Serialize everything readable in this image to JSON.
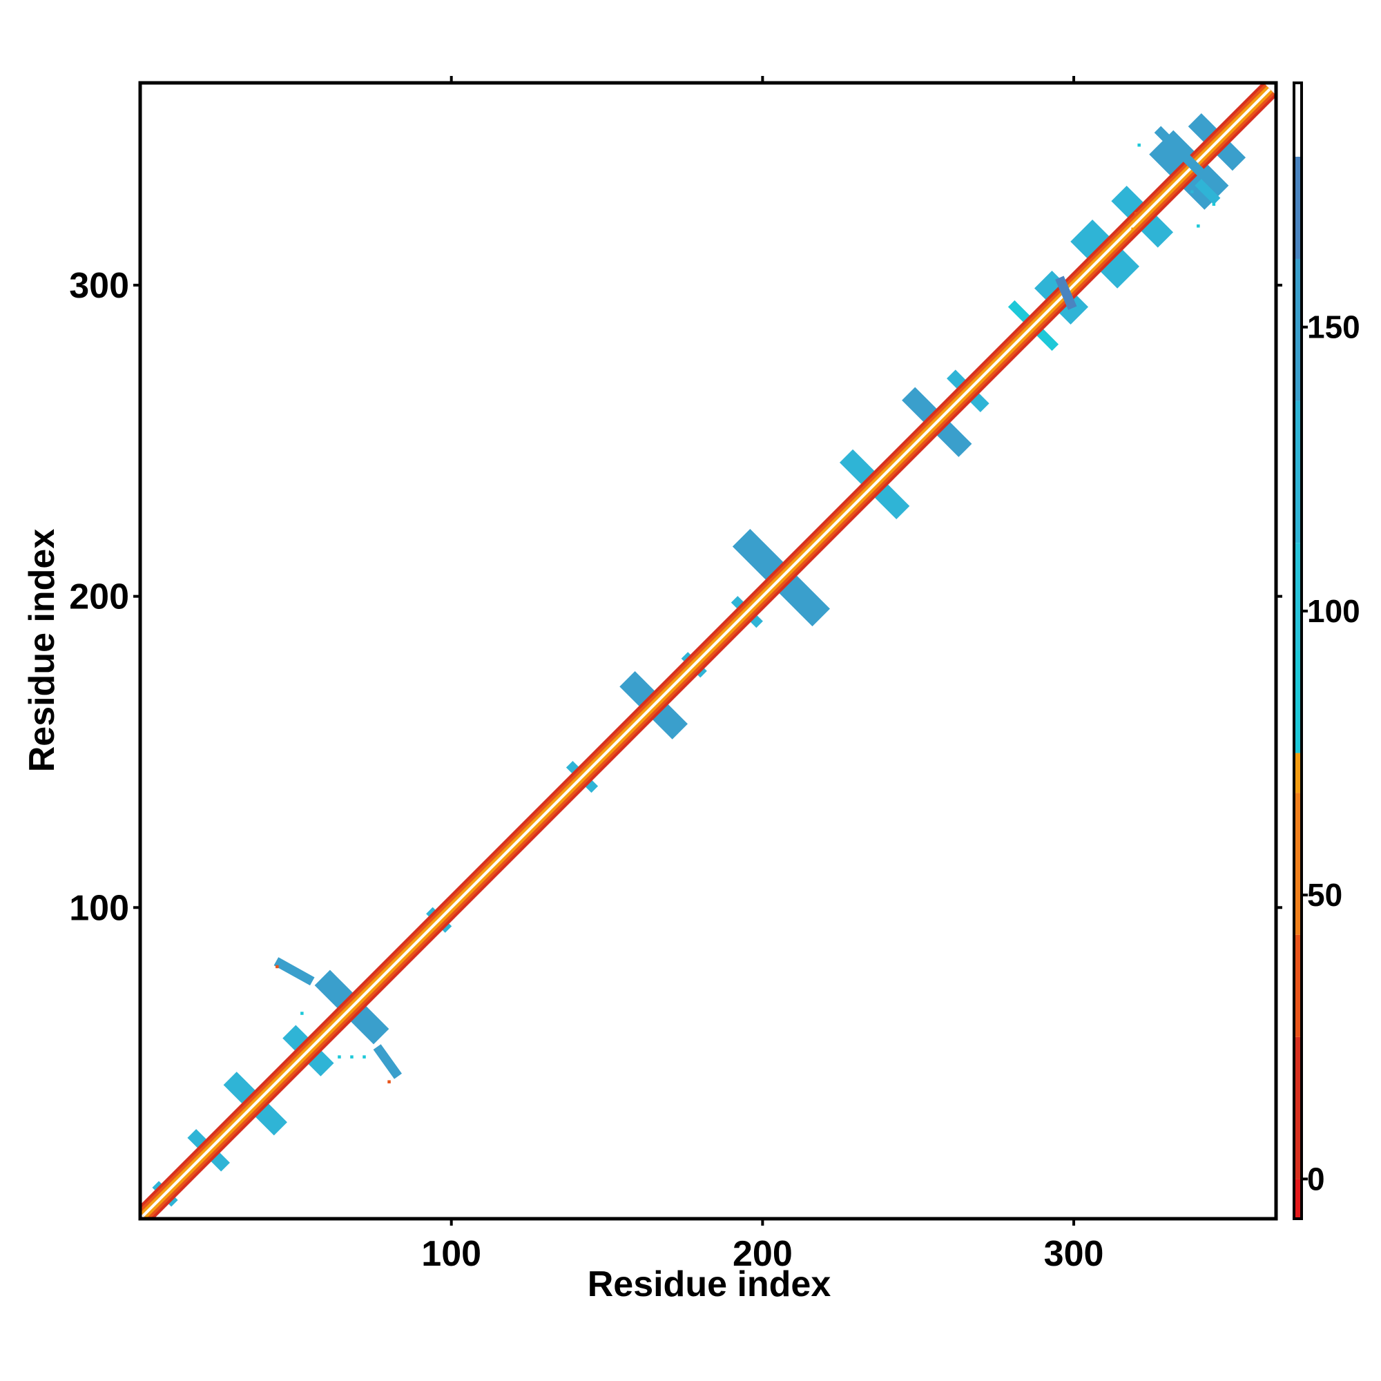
{
  "chart_data": {
    "type": "heatmap",
    "title": "",
    "xlabel": "Residue index",
    "ylabel": "Residue index",
    "xlim": [
      0,
      365
    ],
    "ylim": [
      0,
      365
    ],
    "x_ticks": [
      100,
      200,
      300
    ],
    "y_ticks": [
      100,
      200,
      300
    ],
    "x_tick_labels": [
      "100",
      "200",
      "300"
    ],
    "y_tick_labels": [
      "100",
      "200",
      "300"
    ],
    "grid": false,
    "legend": "none",
    "colorbar": {
      "position": "right",
      "range": [
        -7,
        193
      ],
      "ticks": [
        0,
        50,
        100,
        150
      ],
      "tick_labels": [
        "0",
        "50",
        "100",
        "150"
      ],
      "bands": [
        {
          "from": -7,
          "to": 0,
          "color": "#e41a1c"
        },
        {
          "from": 0,
          "to": 25,
          "color": "#d7301f"
        },
        {
          "from": 25,
          "to": 43,
          "color": "#e8541a"
        },
        {
          "from": 43,
          "to": 68,
          "color": "#f07f1b"
        },
        {
          "from": 68,
          "to": 75,
          "color": "#f39c12"
        },
        {
          "from": 75,
          "to": 93,
          "color": "#1ec8d8"
        },
        {
          "from": 93,
          "to": 112,
          "color": "#27c3da"
        },
        {
          "from": 112,
          "to": 137,
          "color": "#2fb4d6"
        },
        {
          "from": 137,
          "to": 162,
          "color": "#3a9fcc"
        },
        {
          "from": 162,
          "to": 180,
          "color": "#4a84c0"
        },
        {
          "from": 180,
          "to": 193,
          "color": "#ffffff"
        }
      ]
    },
    "diagonal": {
      "from": 1,
      "to": 363
    },
    "diagonal_bands": [
      {
        "offset": 0,
        "color": "#ffffff"
      },
      {
        "offset": 1,
        "color": "#f39c12"
      },
      {
        "offset": 2,
        "color": "#e8541a"
      },
      {
        "offset": 3,
        "color": "#d7301f"
      }
    ],
    "blocks": [
      {
        "center": 8,
        "half": 2,
        "width": 3,
        "color": "#2fb4d6"
      },
      {
        "center": 22,
        "half": 4,
        "width": 4,
        "color": "#2fb4d6"
      },
      {
        "center": 37,
        "half": 6,
        "width": 6,
        "color": "#2fb4d6"
      },
      {
        "center": 54,
        "half": 4,
        "width": 6,
        "color": "#2fb4d6"
      },
      {
        "center": 68,
        "half": 7,
        "width": 7,
        "color": "#3a9fcc"
      },
      {
        "center": 96,
        "half": 2,
        "width": 3,
        "color": "#2fb4d6"
      },
      {
        "center": 142,
        "half": 3,
        "width": 3,
        "color": "#2fb4d6"
      },
      {
        "center": 165,
        "half": 6,
        "width": 7,
        "color": "#3a9fcc"
      },
      {
        "center": 178,
        "half": 2,
        "width": 3,
        "color": "#2fb4d6"
      },
      {
        "center": 195,
        "half": 3,
        "width": 3,
        "color": "#2fb4d6"
      },
      {
        "center": 206,
        "half": 10,
        "width": 8,
        "color": "#3a9fcc"
      },
      {
        "center": 236,
        "half": 7,
        "width": 6,
        "color": "#2fb4d6"
      },
      {
        "center": 256,
        "half": 7,
        "width": 6,
        "color": "#3a9fcc"
      },
      {
        "center": 266,
        "half": 4,
        "width": 4,
        "color": "#2fb4d6"
      },
      {
        "center": 287,
        "half": 6,
        "width": 3,
        "color": "#1ec8d8"
      },
      {
        "center": 296,
        "half": 3,
        "width": 8,
        "color": "#2fb4d6"
      },
      {
        "center": 310,
        "half": 4,
        "width": 10,
        "color": "#2fb4d6"
      },
      {
        "center": 322,
        "half": 5,
        "width": 7,
        "color": "#2fb4d6"
      },
      {
        "center": 337,
        "half": 5,
        "width": 11,
        "color": "#3a9fcc"
      },
      {
        "center": 346,
        "half": 5,
        "width": 6,
        "color": "#3a9fcc"
      }
    ],
    "off_diagonal": [
      {
        "x": [
          45,
          54
        ],
        "y": [
          82,
          77
        ],
        "width": 3,
        "color": "#3a9fcc"
      },
      {
        "x": [
          77,
          82
        ],
        "y": [
          54,
          47
        ],
        "width": 3,
        "color": "#3a9fcc"
      },
      {
        "x": [
          296,
          299
        ],
        "y": [
          301,
          294
        ],
        "width": 3,
        "color": "#4a84c0"
      },
      {
        "x": [
          328,
          342
        ],
        "y": [
          349,
          335
        ],
        "width": 3,
        "color": "#3a9fcc"
      },
      {
        "x": [
          341,
          345
        ],
        "y": [
          332,
          328
        ],
        "width": 3,
        "color": "#2fb4d6"
      }
    ],
    "points": [
      {
        "x": 44,
        "y": 81,
        "color": "#e8541a"
      },
      {
        "x": 52,
        "y": 66,
        "color": "#1ec8d8"
      },
      {
        "x": 64,
        "y": 52,
        "color": "#1ec8d8"
      },
      {
        "x": 68,
        "y": 52,
        "color": "#1ec8d8"
      },
      {
        "x": 72,
        "y": 52,
        "color": "#1ec8d8"
      },
      {
        "x": 80,
        "y": 44,
        "color": "#e8541a"
      },
      {
        "x": 320,
        "y": 323,
        "color": "#e8541a"
      },
      {
        "x": 319,
        "y": 318,
        "color": "#f39c12"
      },
      {
        "x": 321,
        "y": 345,
        "color": "#1ec8d8"
      },
      {
        "x": 340,
        "y": 319,
        "color": "#1ec8d8"
      },
      {
        "x": 338,
        "y": 330,
        "color": "#2fb4d6"
      },
      {
        "x": 345,
        "y": 326,
        "color": "#1ec8d8"
      }
    ]
  }
}
